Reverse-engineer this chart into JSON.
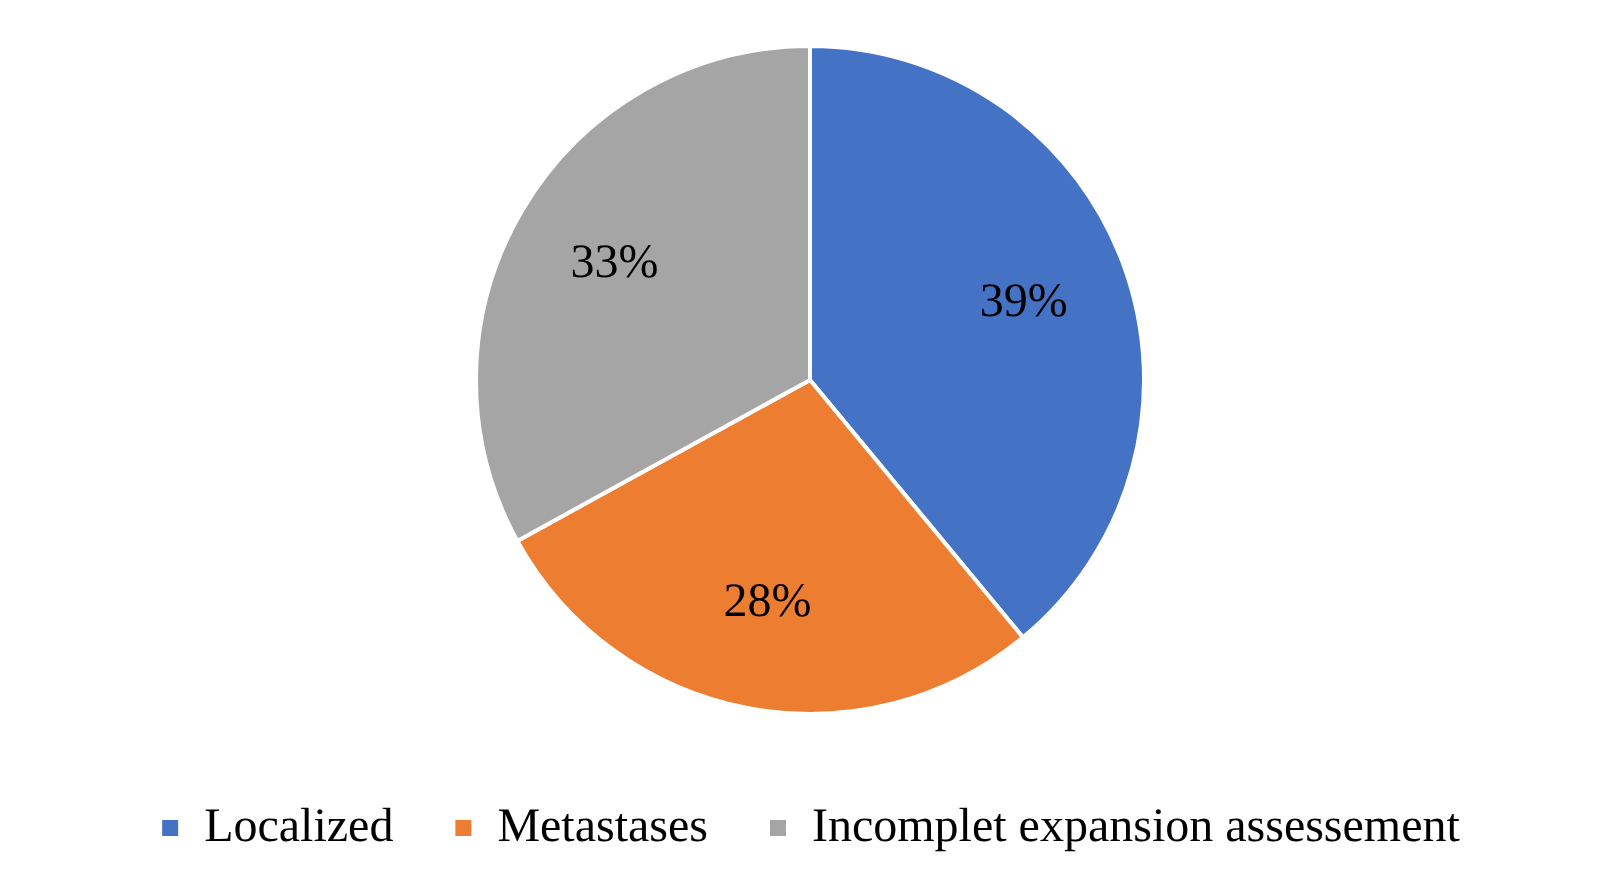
{
  "chart_data": {
    "type": "pie",
    "categories": [
      "Localized",
      "Metastases",
      "Incomplet expansion assessement"
    ],
    "values": [
      39,
      28,
      33
    ],
    "colors": [
      "#4472c4",
      "#ed7d31",
      "#a5a5a5"
    ],
    "value_labels": [
      "39%",
      "28%",
      "33%"
    ],
    "legend": "bottom"
  }
}
